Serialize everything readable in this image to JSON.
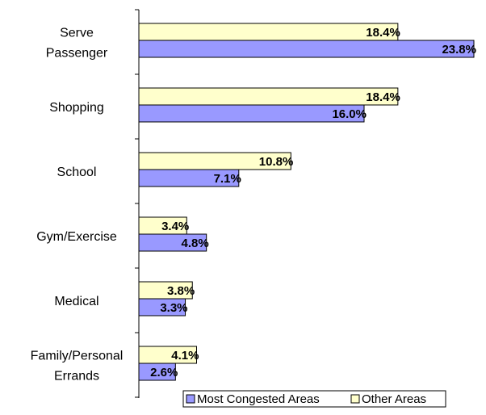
{
  "chart_data": {
    "type": "bar",
    "orientation": "horizontal",
    "categories": [
      [
        "Serve",
        "Passenger"
      ],
      [
        "Shopping"
      ],
      [
        "School"
      ],
      [
        "Gym/Exercise"
      ],
      [
        "Medical"
      ],
      [
        "Family/Personal",
        "Errands"
      ]
    ],
    "series": [
      {
        "name": "Other Areas",
        "color": "#FFFFCC",
        "values": [
          18.4,
          18.4,
          10.8,
          3.4,
          3.8,
          4.1
        ],
        "labels": [
          "18.4%",
          "18.4%",
          "10.8%",
          "3.4%",
          "3.8%",
          "4.1%"
        ]
      },
      {
        "name": "Most Congested Areas",
        "color": "#9999FF",
        "values": [
          23.8,
          16.0,
          7.1,
          4.8,
          3.3,
          2.6
        ],
        "labels": [
          "23.8%",
          "16.0%",
          "7.1%",
          "4.8%",
          "3.3%",
          "2.6%"
        ]
      }
    ],
    "value_unit": "%",
    "xlim": [
      0,
      24
    ],
    "legend": {
      "placement": "bottom-right",
      "items": [
        "Most Congested Areas",
        "Other Areas"
      ]
    },
    "grid": false
  }
}
